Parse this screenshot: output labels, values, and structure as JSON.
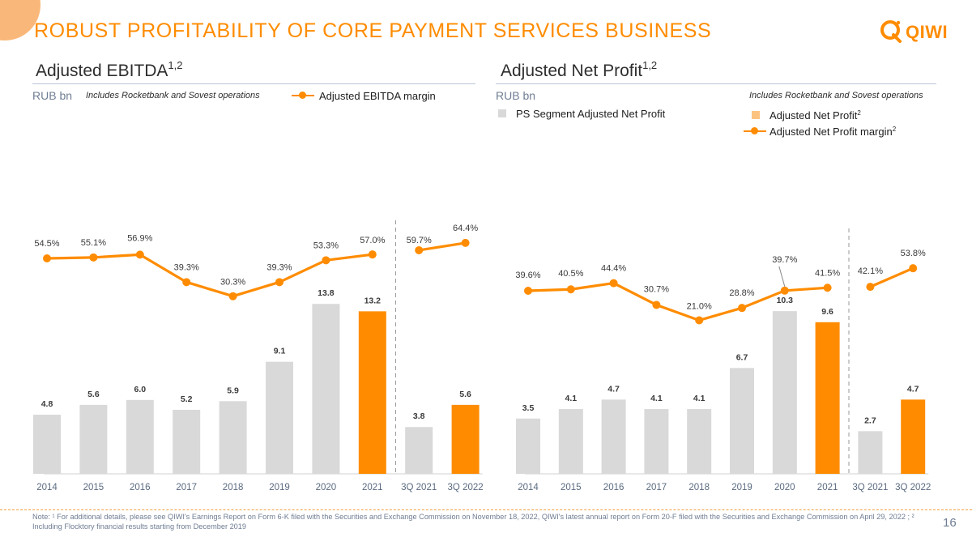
{
  "title": "ROBUST PROFITABILITY OF CORE PAYMENT SERVICES BUSINESS",
  "logo_text": "QIWI",
  "colors": {
    "accent": "#ff8c00",
    "gray_bar": "#d9d9d9",
    "light_orange": "#fcc380",
    "text": "#3a3a3a"
  },
  "left": {
    "title": "Adjusted EBITDA",
    "title_sup": "1,2",
    "unit": "RUB bn",
    "note": "Includes Rocketbank and Sovest operations",
    "legend_line": "Adjusted EBITDA margin"
  },
  "right": {
    "title": "Adjusted Net Profit",
    "title_sup": "1,2",
    "unit": "RUB bn",
    "note": "Includes Rocketbank and Sovest operations",
    "legend_gray": "PS Segment Adjusted Net Profit",
    "legend_bar": "Adjusted Net Profit",
    "legend_bar_sup": "2",
    "legend_line": "Adjusted Net Profit margin",
    "legend_line_sup": "2"
  },
  "chart_data": [
    {
      "type": "bar",
      "title": "Adjusted EBITDA",
      "ylabel": "RUB bn",
      "categories": [
        "2014",
        "2015",
        "2016",
        "2017",
        "2018",
        "2019",
        "2020",
        "2021",
        "3Q 2021",
        "3Q 2022"
      ],
      "values": [
        4.8,
        5.6,
        6.0,
        5.2,
        5.9,
        9.1,
        13.8,
        13.2,
        3.8,
        5.6
      ],
      "bar_colors": [
        "gray",
        "gray",
        "gray",
        "gray",
        "gray",
        "gray",
        "gray",
        "orange",
        "gray",
        "orange"
      ],
      "value_labels": [
        "4.8",
        "5.6",
        "6.0",
        "5.2",
        "5.9",
        "9.1",
        "13.8",
        "13.2",
        "3.8",
        "5.6"
      ],
      "line_series": {
        "name": "Adjusted EBITDA margin",
        "values": [
          54.5,
          55.1,
          56.9,
          39.3,
          30.3,
          39.3,
          53.3,
          57.0,
          59.7,
          64.4
        ],
        "labels": [
          "54.5%",
          "55.1%",
          "56.9%",
          "39.3%",
          "30.3%",
          "39.3%",
          "53.3%",
          "57.0%",
          "59.7%",
          "64.4%"
        ]
      },
      "separator_after_index": 7
    },
    {
      "type": "bar",
      "title": "Adjusted Net Profit",
      "ylabel": "RUB bn",
      "categories": [
        "2014",
        "2015",
        "2016",
        "2017",
        "2018",
        "2019",
        "2020",
        "2021",
        "3Q 2021",
        "3Q 2022"
      ],
      "values": [
        3.5,
        4.1,
        4.7,
        4.1,
        4.1,
        6.7,
        10.3,
        9.6,
        2.7,
        4.7
      ],
      "bar_colors": [
        "gray",
        "gray",
        "gray",
        "gray",
        "gray",
        "gray",
        "gray",
        "orange",
        "gray",
        "orange"
      ],
      "value_labels": [
        "3.5",
        "4.1",
        "4.7",
        "4.1",
        "4.1",
        "6.7",
        "10.3",
        "9.6",
        "2.7",
        "4.7"
      ],
      "line_series": {
        "name": "Adjusted Net Profit margin",
        "values": [
          39.6,
          40.5,
          44.4,
          30.7,
          21.0,
          28.8,
          39.7,
          41.5,
          42.1,
          53.8
        ],
        "labels": [
          "39.6%",
          "40.5%",
          "44.4%",
          "30.7%",
          "21.0%",
          "28.8%",
          "39.7%",
          "41.5%",
          "42.1%",
          "53.8%"
        ]
      },
      "separator_after_index": 7
    }
  ],
  "footnote": "Note: ¹ For additional details, please see QIWI's Earnings Report on Form 6-K filed with the Securities and Exchange Commission on November 18, 2022, QIWI's latest annual report on Form 20-F filed with the Securities and Exchange Commission on April 29, 2022 ; ² Including Flocktory financial results starting from December 2019",
  "page_number": "16"
}
